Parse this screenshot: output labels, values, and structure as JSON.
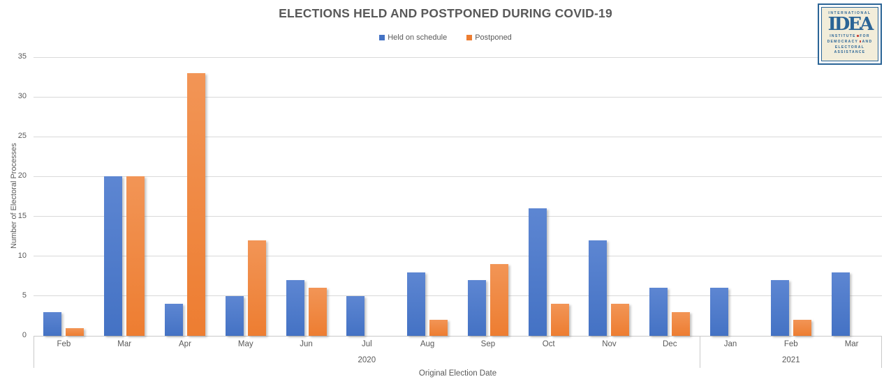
{
  "chart_data": {
    "type": "bar",
    "title": "ELECTIONS HELD AND POSTPONED DURING COVID-19",
    "xlabel": "Original Election Date",
    "ylabel": "Number of Electoral Processes",
    "ylim": [
      0,
      35
    ],
    "ytick_step": 5,
    "grid": true,
    "legend_position": "top-center",
    "categories": [
      "Feb",
      "Mar",
      "Apr",
      "May",
      "Jun",
      "Jul",
      "Aug",
      "Sep",
      "Oct",
      "Nov",
      "Dec",
      "Jan",
      "Feb",
      "Mar"
    ],
    "year_groups": [
      {
        "label": "2020",
        "start_index": 0,
        "count": 11
      },
      {
        "label": "2021",
        "start_index": 11,
        "count": 3
      }
    ],
    "series": [
      {
        "name": "Held on schedule",
        "color": "#4472c4",
        "color_light": "#5d86d2",
        "values": [
          3,
          20,
          4,
          5,
          7,
          5,
          8,
          7,
          16,
          12,
          6,
          6,
          7,
          8
        ]
      },
      {
        "name": "Postponed",
        "color": "#ed7d31",
        "color_light": "#f29556",
        "values": [
          1,
          20,
          33,
          12,
          6,
          0,
          2,
          9,
          4,
          4,
          3,
          0,
          2,
          0
        ]
      }
    ]
  },
  "logo": {
    "top_word": "INTERNATIONAL",
    "main_word": "IDEA",
    "sub_lines": [
      "INSTITUTE FOR",
      "DEMOCRACY AND",
      "ELECTORAL",
      "ASSISTANCE"
    ]
  },
  "colors": {
    "text": "#595959",
    "gridline": "#d9d9d9",
    "held_blue": "#4472c4",
    "postponed_orange": "#ed7d31",
    "logo_blue": "#2a6496",
    "logo_red": "#c84b41",
    "logo_beige": "#f2edda"
  }
}
